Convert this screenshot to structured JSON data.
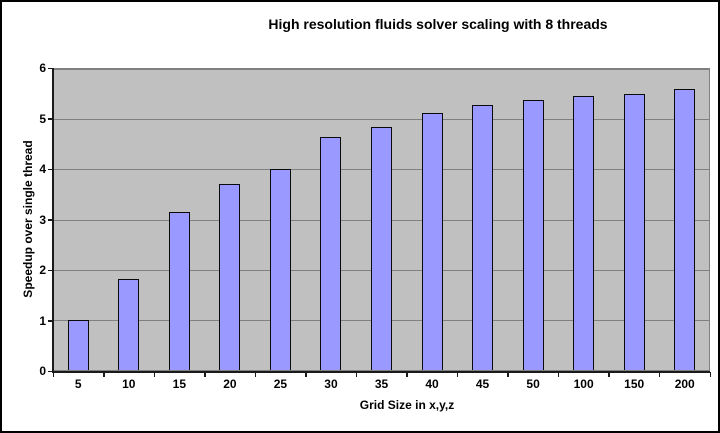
{
  "window": {
    "background": "#FFFFFF",
    "border_color": "#000000"
  },
  "chart_data": {
    "type": "bar",
    "title": "High resolution fluids solver scaling with 8 threads",
    "xlabel": "Grid Size in x,y,z",
    "ylabel": "Speedup over single thread",
    "categories": [
      "5",
      "10",
      "15",
      "20",
      "25",
      "30",
      "35",
      "40",
      "45",
      "50",
      "100",
      "150",
      "200"
    ],
    "values": [
      1.0,
      1.82,
      3.15,
      3.71,
      4.0,
      4.64,
      4.84,
      5.12,
      5.28,
      5.38,
      5.46,
      5.5,
      5.6
    ],
    "ylim": [
      0,
      6
    ],
    "yticks": [
      0,
      1,
      2,
      3,
      4,
      5,
      6
    ],
    "grid": true,
    "legend_position": "none",
    "colors": {
      "plot_bg": "#C0C0C0",
      "gridline": "#808080",
      "bar_fill": "#9999FF",
      "bar_border": "#0A0A0A",
      "axis": "#1A1A1A",
      "text": "#000000"
    }
  }
}
